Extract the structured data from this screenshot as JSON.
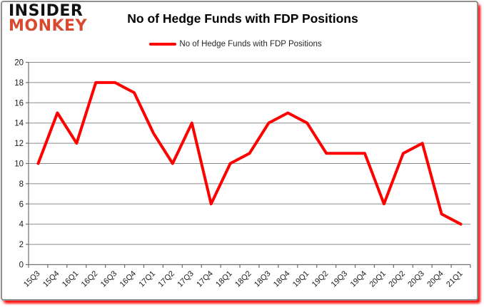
{
  "logo": {
    "line1": "INSIDER",
    "line2": "MONKEY"
  },
  "header": {
    "title": "No of Hedge Funds with FDP Positions"
  },
  "legend": {
    "label": "No of Hedge Funds with FDP Positions"
  },
  "colors": {
    "series_red": "#ff0000",
    "logo_red": "#d9492f",
    "gridline_gray": "#8a8a8a",
    "axis_gray": "#6f6f6f",
    "label_dark": "#1a1a1a",
    "card_border_gray": "#8f8f8f",
    "glow_red": "#ff0000"
  },
  "chart_data": {
    "type": "line",
    "title": "No of Hedge Funds with FDP Positions",
    "categories": [
      "15Q3",
      "15Q4",
      "16Q1",
      "16Q2",
      "16Q3",
      "16Q4",
      "17Q1",
      "17Q2",
      "17Q3",
      "17Q4",
      "18Q1",
      "18Q2",
      "18Q3",
      "18Q4",
      "19Q1",
      "19Q2",
      "19Q3",
      "19Q4",
      "20Q1",
      "20Q2",
      "20Q3",
      "20Q4",
      "21Q1"
    ],
    "series": [
      {
        "name": "No of Hedge Funds with FDP Positions",
        "color": "#ff0000",
        "values": [
          10,
          15,
          12,
          18,
          18,
          17,
          13,
          10,
          14,
          6,
          10,
          11,
          14,
          15,
          14,
          11,
          11,
          11,
          6,
          11,
          12,
          5,
          4
        ]
      }
    ],
    "xlabel": "",
    "ylabel": "",
    "ylim": [
      0,
      20
    ],
    "ytick_step": 2,
    "grid": true,
    "legend_position": "top-center",
    "x_label_rotation_deg": -45
  }
}
